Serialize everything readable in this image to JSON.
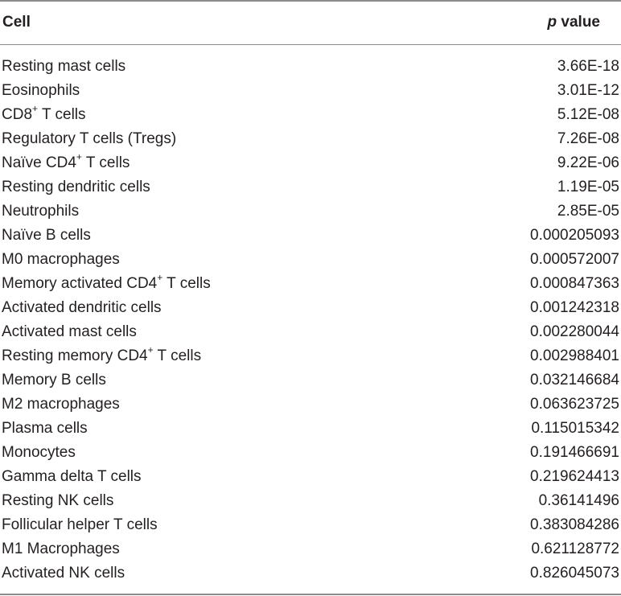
{
  "table": {
    "headers": {
      "cell": "Cell",
      "p_italic": "p",
      "p_rest": " value"
    },
    "rows": [
      {
        "name": "Resting mast cells",
        "sup": "",
        "suffix": "",
        "p": "3.66E-18"
      },
      {
        "name": "Eosinophils",
        "sup": "",
        "suffix": "",
        "p": "3.01E-12"
      },
      {
        "name": "CD8",
        "sup": "+",
        "suffix": " T cells",
        "p": "5.12E-08"
      },
      {
        "name": "Regulatory T cells (Tregs)",
        "sup": "",
        "suffix": "",
        "p": "7.26E-08"
      },
      {
        "name": "Naïve CD4",
        "sup": "+",
        "suffix": " T cells",
        "p": "9.22E-06"
      },
      {
        "name": "Resting dendritic cells",
        "sup": "",
        "suffix": "",
        "p": "1.19E-05"
      },
      {
        "name": "Neutrophils",
        "sup": "",
        "suffix": "",
        "p": "2.85E-05"
      },
      {
        "name": "Naïve B cells",
        "sup": "",
        "suffix": "",
        "p": "0.000205093"
      },
      {
        "name": "M0 macrophages",
        "sup": "",
        "suffix": "",
        "p": "0.000572007"
      },
      {
        "name": "Memory activated CD4",
        "sup": "+",
        "suffix": " T cells",
        "p": "0.000847363"
      },
      {
        "name": "Activated dendritic cells",
        "sup": "",
        "suffix": "",
        "p": "0.001242318"
      },
      {
        "name": "Activated mast cells",
        "sup": "",
        "suffix": "",
        "p": "0.002280044"
      },
      {
        "name": "Resting memory CD4",
        "sup": "+",
        "suffix": " T cells",
        "p": "0.002988401"
      },
      {
        "name": "Memory B cells",
        "sup": "",
        "suffix": "",
        "p": "0.032146684"
      },
      {
        "name": "M2 macrophages",
        "sup": "",
        "suffix": "",
        "p": "0.063623725"
      },
      {
        "name": "Plasma cells",
        "sup": "",
        "suffix": "",
        "p": "0.115015342"
      },
      {
        "name": "Monocytes",
        "sup": "",
        "suffix": "",
        "p": "0.191466691"
      },
      {
        "name": "Gamma delta T cells",
        "sup": "",
        "suffix": "",
        "p": "0.219624413"
      },
      {
        "name": "Resting NK cells",
        "sup": "",
        "suffix": "",
        "p": "0.36141496"
      },
      {
        "name": "Follicular helper T cells",
        "sup": "",
        "suffix": "",
        "p": "0.383084286"
      },
      {
        "name": "M1 Macrophages",
        "sup": "",
        "suffix": "",
        "p": "0.621128772"
      },
      {
        "name": "Activated NK cells",
        "sup": "",
        "suffix": "",
        "p": "0.826045073"
      }
    ]
  }
}
